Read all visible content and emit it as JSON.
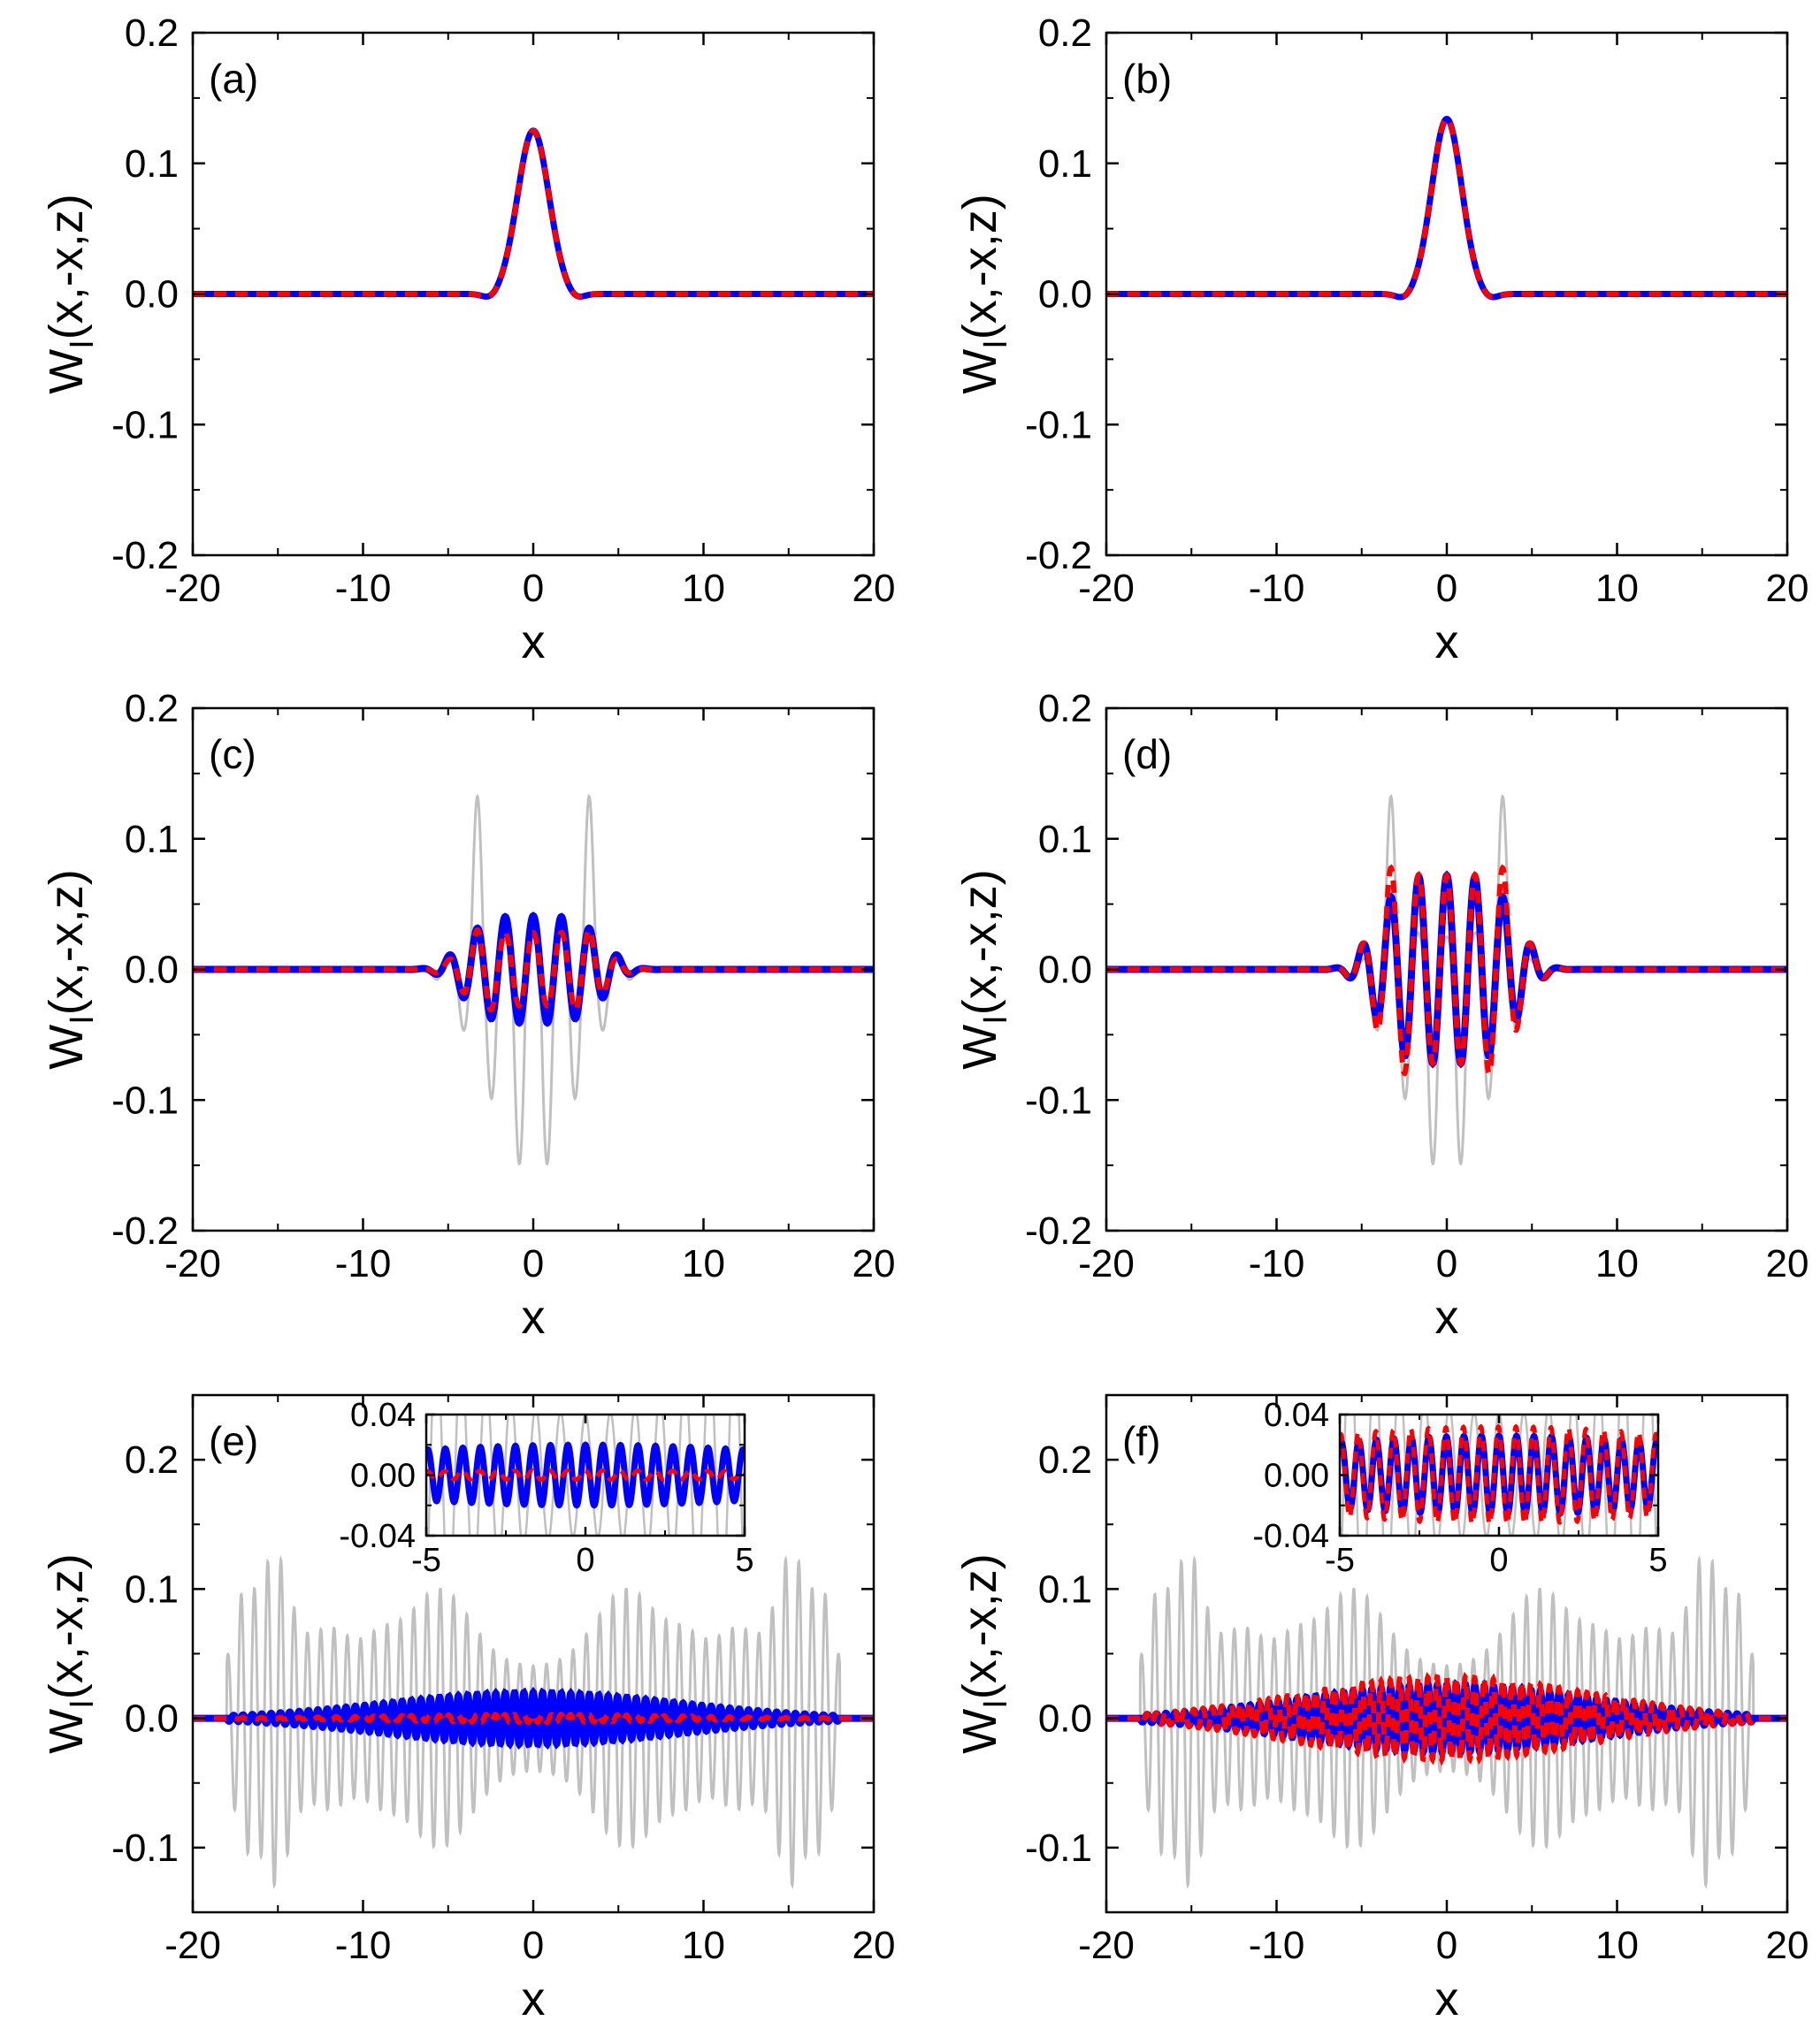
{
  "chart_data": [
    {
      "id": "a",
      "type": "line",
      "panel_label": "(a)",
      "xlabel": "x",
      "ylabel": "W",
      "ylabel_sub": "I",
      "ylabel_rest": "(x,-x,z)",
      "xlim": [
        -20,
        20
      ],
      "ylim": [
        -0.2,
        0.2
      ],
      "xticks": [
        -20,
        -10,
        0,
        10,
        20
      ],
      "xtick_labels": [
        "-20",
        "-10",
        "0",
        "10",
        "20"
      ],
      "yticks": [
        -0.2,
        -0.1,
        0.0,
        0.1,
        0.2
      ],
      "ytick_labels": [
        "-0.2",
        "-0.1",
        "0.0",
        "0.1",
        "0.2"
      ],
      "grid": false,
      "colors": {
        "reference": "#c0c0c0",
        "solid": "#0000ff",
        "dashed": "#ff0000"
      },
      "profile": {
        "kind": "gaussian",
        "amplitude": 0.125,
        "width": 1.3,
        "dip_amplitude": 0.004
      },
      "series": [
        {
          "style": "solid",
          "color": "#0000ff"
        },
        {
          "style": "dashed",
          "color": "#ff0000"
        }
      ]
    },
    {
      "id": "b",
      "type": "line",
      "panel_label": "(b)",
      "xlabel": "x",
      "ylabel": "W",
      "ylabel_sub": "I",
      "ylabel_rest": "(x,-x,z)",
      "xlim": [
        -20,
        20
      ],
      "ylim": [
        -0.2,
        0.2
      ],
      "xticks": [
        -20,
        -10,
        0,
        10,
        20
      ],
      "xtick_labels": [
        "-20",
        "-10",
        "0",
        "10",
        "20"
      ],
      "yticks": [
        -0.2,
        -0.1,
        0.0,
        0.1,
        0.2
      ],
      "ytick_labels": [
        "-0.2",
        "-0.1",
        "0.0",
        "0.1",
        "0.2"
      ],
      "grid": false,
      "colors": {
        "reference": "#c0c0c0",
        "solid": "#0000ff",
        "dashed": "#ff0000"
      },
      "profile": {
        "kind": "gaussian",
        "amplitude": 0.134,
        "width": 1.25,
        "dip_amplitude": 0.004
      },
      "series": [
        {
          "style": "solid",
          "color": "#0000ff"
        },
        {
          "style": "dashed",
          "color": "#ff0000"
        }
      ]
    },
    {
      "id": "c",
      "type": "line",
      "panel_label": "(c)",
      "xlabel": "x",
      "ylabel": "W",
      "ylabel_sub": "I",
      "ylabel_rest": "(x,-x,z)",
      "xlim": [
        -20,
        20
      ],
      "ylim": [
        -0.2,
        0.2
      ],
      "xticks": [
        -20,
        -10,
        0,
        10,
        20
      ],
      "xtick_labels": [
        "-20",
        "-10",
        "0",
        "10",
        "20"
      ],
      "yticks": [
        -0.2,
        -0.1,
        0.0,
        0.1,
        0.2
      ],
      "ytick_labels": [
        "-0.2",
        "-0.1",
        "0.0",
        "0.1",
        "0.2"
      ],
      "grid": false,
      "colors": {
        "reference": "#c0c0c0",
        "solid": "#0000ff",
        "dashed": "#ff0000"
      },
      "profile": {
        "kind": "oscillating",
        "period": 1.65,
        "phase": 0.0,
        "envelope_width": 4.6,
        "peak_positions": [
          -3.3,
          3.3
        ],
        "ref_max": 0.172,
        "ref_min": -0.158,
        "solid_amp": 0.041,
        "dashed_amp": 0.028
      },
      "series": [
        {
          "style": "reference",
          "color": "#c0c0c0"
        },
        {
          "style": "solid",
          "color": "#0000ff"
        },
        {
          "style": "dashed",
          "color": "#ff0000"
        }
      ]
    },
    {
      "id": "d",
      "type": "line",
      "panel_label": "(d)",
      "xlabel": "x",
      "ylabel": "W",
      "ylabel_sub": "I",
      "ylabel_rest": "(x,-x,z)",
      "xlim": [
        -20,
        20
      ],
      "ylim": [
        -0.2,
        0.2
      ],
      "xticks": [
        -20,
        -10,
        0,
        10,
        20
      ],
      "xtick_labels": [
        "-20",
        "-10",
        "0",
        "10",
        "20"
      ],
      "yticks": [
        -0.2,
        -0.1,
        0.0,
        0.1,
        0.2
      ],
      "ytick_labels": [
        "-0.2",
        "-0.1",
        "0.0",
        "0.1",
        "0.2"
      ],
      "grid": false,
      "colors": {
        "reference": "#c0c0c0",
        "solid": "#0000ff",
        "dashed": "#ff0000"
      },
      "profile": {
        "kind": "oscillating",
        "period": 1.65,
        "phase": 0.0,
        "envelope_width": 4.6,
        "peak_positions": [
          -3.3,
          3.3
        ],
        "ref_max": 0.172,
        "ref_min": -0.158,
        "solid_amp": 0.072,
        "dashed_amp": 0.072
      },
      "series": [
        {
          "style": "reference",
          "color": "#c0c0c0"
        },
        {
          "style": "solid",
          "color": "#0000ff"
        },
        {
          "style": "dashed",
          "color": "#ff0000"
        }
      ]
    },
    {
      "id": "e",
      "type": "line",
      "panel_label": "(e)",
      "xlabel": "x",
      "ylabel": "W",
      "ylabel_sub": "I",
      "ylabel_rest": "(x,-x,z)",
      "xlim": [
        -20,
        20
      ],
      "ylim": [
        -0.15,
        0.25
      ],
      "xticks": [
        -20,
        -10,
        0,
        10,
        20
      ],
      "xtick_labels": [
        "-20",
        "-10",
        "0",
        "10",
        "20"
      ],
      "yticks": [
        -0.1,
        0.0,
        0.1,
        0.2
      ],
      "ytick_labels": [
        "-0.1",
        "0.0",
        "0.1",
        "0.2"
      ],
      "grid": false,
      "colors": {
        "reference": "#c0c0c0",
        "solid": "#0000ff",
        "dashed": "#ff0000"
      },
      "profile": {
        "kind": "spread",
        "ref_period": 0.78,
        "fast_period": 0.55,
        "extent": 18,
        "ref_peaks": [
          -15.2,
          15.2
        ],
        "ref_max": 0.128,
        "ref_min": -0.12,
        "solid_amp": 0.02,
        "dashed_amp": 0.003
      },
      "series": [
        {
          "style": "reference",
          "color": "#c0c0c0"
        },
        {
          "style": "solid",
          "color": "#0000ff"
        },
        {
          "style": "dashed",
          "color": "#ff0000"
        }
      ],
      "inset": {
        "xlim": [
          -5,
          5
        ],
        "ylim": [
          -0.04,
          0.04
        ],
        "xticks": [
          -5,
          0,
          5
        ],
        "xtick_labels": [
          "-5",
          "0",
          "5"
        ],
        "yticks": [
          -0.04,
          0.0,
          0.04
        ],
        "ytick_labels": [
          "-0.04",
          "0.00",
          "0.04"
        ]
      }
    },
    {
      "id": "f",
      "type": "line",
      "panel_label": "(f)",
      "xlabel": "x",
      "ylabel": "W",
      "ylabel_sub": "I",
      "ylabel_rest": "(x,-x,z)",
      "xlim": [
        -20,
        20
      ],
      "ylim": [
        -0.15,
        0.25
      ],
      "xticks": [
        -20,
        -10,
        0,
        10,
        20
      ],
      "xtick_labels": [
        "-20",
        "-10",
        "0",
        "10",
        "20"
      ],
      "yticks": [
        -0.1,
        0.0,
        0.1,
        0.2
      ],
      "ytick_labels": [
        "-0.1",
        "0.0",
        "0.1",
        "0.2"
      ],
      "grid": false,
      "colors": {
        "reference": "#c0c0c0",
        "solid": "#0000ff",
        "dashed": "#ff0000"
      },
      "profile": {
        "kind": "spread",
        "ref_period": 0.78,
        "fast_period": 0.55,
        "extent": 18,
        "ref_peaks": [
          -15.2,
          15.2
        ],
        "ref_max": 0.128,
        "ref_min": -0.12,
        "solid_amp": 0.026,
        "dashed_amp": 0.032
      },
      "series": [
        {
          "style": "reference",
          "color": "#c0c0c0"
        },
        {
          "style": "solid",
          "color": "#0000ff"
        },
        {
          "style": "dashed",
          "color": "#ff0000"
        }
      ],
      "inset": {
        "xlim": [
          -5,
          5
        ],
        "ylim": [
          -0.04,
          0.04
        ],
        "xticks": [
          -5,
          0,
          5
        ],
        "xtick_labels": [
          "-5",
          "0",
          "5"
        ],
        "yticks": [
          -0.04,
          0.0,
          0.04
        ],
        "ytick_labels": [
          "-0.04",
          "0.00",
          "0.04"
        ]
      }
    }
  ]
}
